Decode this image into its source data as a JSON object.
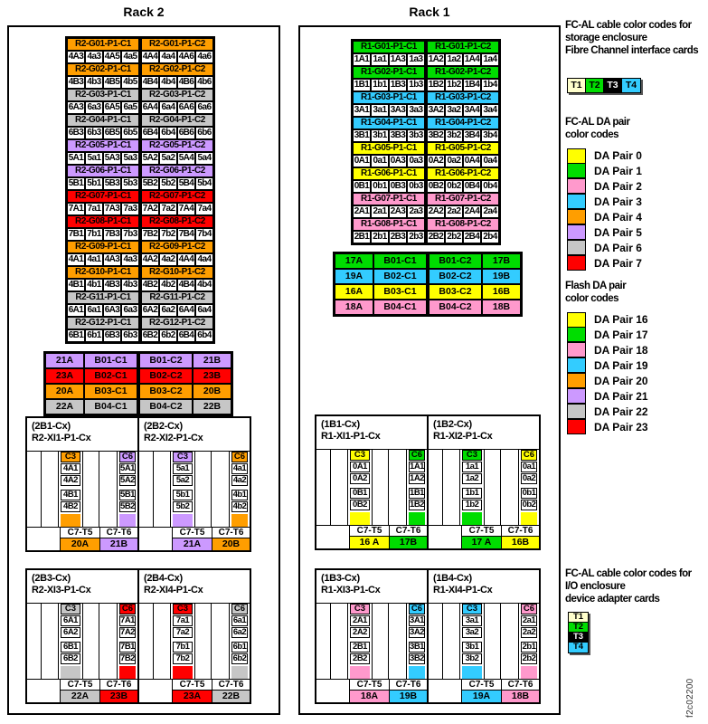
{
  "palette": {
    "orange": "#FF9E00",
    "purple": "#CC99FF",
    "red": "#FF0000",
    "gray": "#C6C6C6",
    "green": "#00DD00",
    "cyan": "#33CCFF",
    "yellow": "#FFFF00",
    "pink": "#FF99CC",
    "cream": "#FFFFCC",
    "black": "#000000"
  },
  "racks": [
    {
      "id": "rack2",
      "title": "Rack 2",
      "groups": [
        {
          "color": "orange",
          "c1": {
            "label": "R2-G01-P1-C1",
            "ports": [
              "4A3",
              "4a3",
              "4A5",
              "4a5"
            ]
          },
          "c2": {
            "label": "R2-G01-P1-C2",
            "ports": [
              "4A4",
              "4a4",
              "4A6",
              "4a6"
            ]
          }
        },
        {
          "color": "orange",
          "c1": {
            "label": "R2-G02-P1-C1",
            "ports": [
              "4B3",
              "4b3",
              "4B5",
              "4b5"
            ]
          },
          "c2": {
            "label": "R2-G02-P1-C2",
            "ports": [
              "4B4",
              "4b4",
              "4B6",
              "4b6"
            ]
          }
        },
        {
          "color": "gray",
          "c1": {
            "label": "R2-G03-P1-C1",
            "ports": [
              "6A3",
              "6a3",
              "6A5",
              "6a5"
            ]
          },
          "c2": {
            "label": "R2-G03-P1-C2",
            "ports": [
              "6A4",
              "6a4",
              "6A6",
              "6a6"
            ]
          }
        },
        {
          "color": "gray",
          "c1": {
            "label": "R2-G04-P1-C1",
            "ports": [
              "6B3",
              "6b3",
              "6B5",
              "6b5"
            ]
          },
          "c2": {
            "label": "R2-G04-P1-C2",
            "ports": [
              "6B4",
              "6b4",
              "6B6",
              "6b6"
            ]
          }
        },
        {
          "color": "purple",
          "c1": {
            "label": "R2-G05-P1-C1",
            "ports": [
              "5A1",
              "5a1",
              "5A3",
              "5a3"
            ]
          },
          "c2": {
            "label": "R2-G05-P1-C2",
            "ports": [
              "5A2",
              "5a2",
              "5A4",
              "5a4"
            ]
          }
        },
        {
          "color": "purple",
          "c1": {
            "label": "R2-G06-P1-C1",
            "ports": [
              "5B1",
              "5b1",
              "5B3",
              "5b3"
            ]
          },
          "c2": {
            "label": "R2-G06-P1-C2",
            "ports": [
              "5B2",
              "5b2",
              "5B4",
              "5b4"
            ]
          }
        },
        {
          "color": "red",
          "c1": {
            "label": "R2-G07-P1-C1",
            "ports": [
              "7A1",
              "7a1",
              "7A3",
              "7a3"
            ]
          },
          "c2": {
            "label": "R2-G07-P1-C2",
            "ports": [
              "7A2",
              "7a2",
              "7A4",
              "7a4"
            ]
          }
        },
        {
          "color": "red",
          "c1": {
            "label": "R2-G08-P1-C1",
            "ports": [
              "7B1",
              "7b1",
              "7B3",
              "7b3"
            ]
          },
          "c2": {
            "label": "R2-G08-P1-C2",
            "ports": [
              "7B2",
              "7b2",
              "7B4",
              "7b4"
            ]
          }
        },
        {
          "color": "orange",
          "c1": {
            "label": "R2-G09-P1-C1",
            "ports": [
              "4A1",
              "4a1",
              "4A3",
              "4a3"
            ]
          },
          "c2": {
            "label": "R2-G09-P1-C2",
            "ports": [
              "4A2",
              "4a2",
              "4A4",
              "4a4"
            ]
          }
        },
        {
          "color": "orange",
          "c1": {
            "label": "R2-G10-P1-C1",
            "ports": [
              "4B1",
              "4b1",
              "4B3",
              "4b3"
            ]
          },
          "c2": {
            "label": "R2-G10-P1-C2",
            "ports": [
              "4B2",
              "4b2",
              "4B4",
              "4b4"
            ]
          }
        },
        {
          "color": "gray",
          "c1": {
            "label": "R2-G11-P1-C1",
            "ports": [
              "6A1",
              "6a1",
              "6A3",
              "6a3"
            ]
          },
          "c2": {
            "label": "R2-G11-P1-C2",
            "ports": [
              "6A2",
              "6a2",
              "6A4",
              "6a4"
            ]
          }
        },
        {
          "color": "gray",
          "c1": {
            "label": "R2-G12-P1-C1",
            "ports": [
              "6B1",
              "6b1",
              "6B3",
              "6b3"
            ]
          },
          "c2": {
            "label": "R2-G12-P1-C2",
            "ports": [
              "6B2",
              "6b2",
              "6B4",
              "6b4"
            ]
          }
        }
      ],
      "bays": [
        {
          "color": "purple",
          "cells": [
            "21A",
            "B01-C1",
            "B01-C2",
            "21B"
          ]
        },
        {
          "color": "red",
          "cells": [
            "23A",
            "B02-C1",
            "B02-C2",
            "23B"
          ]
        },
        {
          "color": "orange",
          "cells": [
            "20A",
            "B03-C1",
            "B03-C2",
            "20B"
          ]
        },
        {
          "color": "gray",
          "cells": [
            "22A",
            "B04-C1",
            "B04-C2",
            "22B"
          ]
        }
      ],
      "enclosures": [
        {
          "id": "(2B1-Cx)",
          "loc": "R2-XI1-P1-Cx",
          "c3": {
            "label": "C3",
            "color": "orange",
            "ports": [
              "4A1",
              "4A2",
              "4B1",
              "4B2"
            ]
          },
          "c6": {
            "label": "C6",
            "color": "purple",
            "ports": [
              "5A1",
              "5A2",
              "5B1",
              "5B2"
            ]
          },
          "t5": {
            "label": "C7-T5",
            "value": "20A",
            "color": "orange"
          },
          "t6": {
            "label": "C7-T6",
            "value": "21B",
            "color": "purple"
          }
        },
        {
          "id": "(2B2-Cx)",
          "loc": "R2-XI2-P1-Cx",
          "c3": {
            "label": "C3",
            "color": "purple",
            "ports": [
              "5a1",
              "5a2",
              "5b1",
              "5b2"
            ]
          },
          "c6": {
            "label": "C6",
            "color": "orange",
            "ports": [
              "4a1",
              "4a2",
              "4b1",
              "4b2"
            ]
          },
          "t5": {
            "label": "C7-T5",
            "value": "21A",
            "color": "purple"
          },
          "t6": {
            "label": "C7-T6",
            "value": "20B",
            "color": "orange"
          }
        },
        {
          "id": "(2B3-Cx)",
          "loc": "R2-XI3-P1-Cx",
          "c3": {
            "label": "C3",
            "color": "gray",
            "ports": [
              "6A1",
              "6A2",
              "6B1",
              "6B2"
            ]
          },
          "c6": {
            "label": "C6",
            "color": "red",
            "ports": [
              "7A1",
              "7A2",
              "7B1",
              "7B2"
            ]
          },
          "t5": {
            "label": "C7-T5",
            "value": "22A",
            "color": "gray"
          },
          "t6": {
            "label": "C7-T6",
            "value": "23B",
            "color": "red"
          }
        },
        {
          "id": "(2B4-Cx)",
          "loc": "R2-XI4-P1-Cx",
          "c3": {
            "label": "C3",
            "color": "red",
            "ports": [
              "7a1",
              "7a2",
              "7b1",
              "7b2"
            ]
          },
          "c6": {
            "label": "C6",
            "color": "gray",
            "ports": [
              "6a1",
              "6a2",
              "6b1",
              "6b2"
            ]
          },
          "t5": {
            "label": "C7-T5",
            "value": "23A",
            "color": "red"
          },
          "t6": {
            "label": "C7-T6",
            "value": "22B",
            "color": "gray"
          }
        }
      ]
    },
    {
      "id": "rack1",
      "title": "Rack 1",
      "groups": [
        {
          "color": "green",
          "c1": {
            "label": "R1-G01-P1-C1",
            "ports": [
              "1A1",
              "1a1",
              "1A3",
              "1a3"
            ]
          },
          "c2": {
            "label": "R1-G01-P1-C2",
            "ports": [
              "1A2",
              "1a2",
              "1A4",
              "1a4"
            ]
          }
        },
        {
          "color": "green",
          "c1": {
            "label": "R1-G02-P1-C1",
            "ports": [
              "1B1",
              "1b1",
              "1B3",
              "1b3"
            ]
          },
          "c2": {
            "label": "R1-G02-P1-C2",
            "ports": [
              "1B2",
              "1b2",
              "1B4",
              "1b4"
            ]
          }
        },
        {
          "color": "cyan",
          "c1": {
            "label": "R1-G03-P1-C1",
            "ports": [
              "3A1",
              "3a1",
              "3A3",
              "3a3"
            ]
          },
          "c2": {
            "label": "R1-G03-P1-C2",
            "ports": [
              "3A2",
              "3a2",
              "3A4",
              "3a4"
            ]
          }
        },
        {
          "color": "cyan",
          "c1": {
            "label": "R1-G04-P1-C1",
            "ports": [
              "3B1",
              "3b1",
              "3B3",
              "3b3"
            ]
          },
          "c2": {
            "label": "R1-G04-P1-C2",
            "ports": [
              "3B2",
              "3b2",
              "3B4",
              "3b4"
            ]
          }
        },
        {
          "color": "yellow",
          "c1": {
            "label": "R1-G05-P1-C1",
            "ports": [
              "0A1",
              "0a1",
              "0A3",
              "0a3"
            ]
          },
          "c2": {
            "label": "R1-G05-P1-C2",
            "ports": [
              "0A2",
              "0a2",
              "0A4",
              "0a4"
            ]
          }
        },
        {
          "color": "yellow",
          "c1": {
            "label": "R1-G06-P1-C1",
            "ports": [
              "0B1",
              "0b1",
              "0B3",
              "0b3"
            ]
          },
          "c2": {
            "label": "R1-G06-P1-C2",
            "ports": [
              "0B2",
              "0b2",
              "0B4",
              "0b4"
            ]
          }
        },
        {
          "color": "pink",
          "c1": {
            "label": "R1-G07-P1-C1",
            "ports": [
              "2A1",
              "2a1",
              "2A3",
              "2a3"
            ]
          },
          "c2": {
            "label": "R1-G07-P1-C2",
            "ports": [
              "2A2",
              "2a2",
              "2A4",
              "2a4"
            ]
          }
        },
        {
          "color": "pink",
          "c1": {
            "label": "R1-G08-P1-C1",
            "ports": [
              "2B1",
              "2b1",
              "2B3",
              "2b3"
            ]
          },
          "c2": {
            "label": "R1-G08-P1-C2",
            "ports": [
              "2B2",
              "2b2",
              "2B4",
              "2b4"
            ]
          }
        }
      ],
      "bays": [
        {
          "color": "green",
          "cells": [
            "17A",
            "B01-C1",
            "B01-C2",
            "17B"
          ]
        },
        {
          "color": "cyan",
          "cells": [
            "19A",
            "B02-C1",
            "B02-C2",
            "19B"
          ]
        },
        {
          "color": "yellow",
          "cells": [
            "16A",
            "B03-C1",
            "B03-C2",
            "16B"
          ]
        },
        {
          "color": "pink",
          "cells": [
            "18A",
            "B04-C1",
            "B04-C2",
            "18B"
          ]
        }
      ],
      "enclosures": [
        {
          "id": "(1B1-Cx)",
          "loc": "R1-XI1-P1-Cx",
          "c3": {
            "label": "C3",
            "color": "yellow",
            "ports": [
              "0A1",
              "0A2",
              "0B1",
              "0B2"
            ]
          },
          "c6": {
            "label": "C6",
            "color": "green",
            "ports": [
              "1A1",
              "1A2",
              "1B1",
              "1B2"
            ]
          },
          "t5": {
            "label": "C7-T5",
            "value": "16 A",
            "color": "yellow"
          },
          "t6": {
            "label": "C7-T6",
            "value": "17B",
            "color": "green"
          }
        },
        {
          "id": "(1B2-Cx)",
          "loc": "R1-XI2-P1-Cx",
          "c3": {
            "label": "C3",
            "color": "green",
            "ports": [
              "1a1",
              "1a2",
              "1b1",
              "1b2"
            ]
          },
          "c6": {
            "label": "C6",
            "color": "yellow",
            "ports": [
              "0a1",
              "0a2",
              "0b1",
              "0b2"
            ]
          },
          "t5": {
            "label": "C7-T5",
            "value": "17 A",
            "color": "green"
          },
          "t6": {
            "label": "C7-T6",
            "value": "16B",
            "color": "yellow"
          }
        },
        {
          "id": "(1B3-Cx)",
          "loc": "R1-XI3-P1-Cx",
          "c3": {
            "label": "C3",
            "color": "pink",
            "ports": [
              "2A1",
              "2A2",
              "2B1",
              "2B2"
            ]
          },
          "c6": {
            "label": "C6",
            "color": "cyan",
            "ports": [
              "3A1",
              "3A2",
              "3B1",
              "3B2"
            ]
          },
          "t5": {
            "label": "C7-T5",
            "value": "18A",
            "color": "pink"
          },
          "t6": {
            "label": "C7-T6",
            "value": "19B",
            "color": "cyan"
          }
        },
        {
          "id": "(1B4-Cx)",
          "loc": "R1-XI4-P1-Cx",
          "c3": {
            "label": "C3",
            "color": "cyan",
            "ports": [
              "3a1",
              "3a2",
              "3b1",
              "3b2"
            ]
          },
          "c6": {
            "label": "C6",
            "color": "pink",
            "ports": [
              "2a1",
              "2a2",
              "2b1",
              "2b2"
            ]
          },
          "t5": {
            "label": "C7-T5",
            "value": "19A",
            "color": "cyan"
          },
          "t6": {
            "label": "C7-T6",
            "value": "18B",
            "color": "pink"
          }
        }
      ]
    }
  ],
  "legend": {
    "storage_title": [
      "FC-AL cable color codes for",
      "storage enclosure",
      "Fibre Channel interface cards"
    ],
    "da_title": [
      "FC-AL DA pair",
      "color codes"
    ],
    "flash_title": [
      "Flash DA pair",
      "color codes"
    ],
    "io_title": [
      "FC-AL cable color codes for",
      "I/O enclosure",
      "device adapter cards"
    ],
    "t_cards": [
      {
        "label": "T1",
        "bg": "cream",
        "fg": "#000000"
      },
      {
        "label": "T2",
        "bg": "green",
        "fg": "#000000"
      },
      {
        "label": "T3",
        "bg": "black",
        "fg": "#FFFFFF"
      },
      {
        "label": "T4",
        "bg": "cyan",
        "fg": "#000000"
      }
    ],
    "da_pairs": [
      {
        "label": "DA Pair 0",
        "color": "yellow"
      },
      {
        "label": "DA Pair 1",
        "color": "green"
      },
      {
        "label": "DA Pair 2",
        "color": "pink"
      },
      {
        "label": "DA Pair 3",
        "color": "cyan"
      },
      {
        "label": "DA Pair 4",
        "color": "orange"
      },
      {
        "label": "DA Pair 5",
        "color": "purple"
      },
      {
        "label": "DA Pair 6",
        "color": "gray"
      },
      {
        "label": "DA Pair 7",
        "color": "red"
      }
    ],
    "flash_pairs": [
      {
        "label": "DA Pair 16",
        "color": "yellow"
      },
      {
        "label": "DA Pair 17",
        "color": "green"
      },
      {
        "label": "DA Pair 18",
        "color": "pink"
      },
      {
        "label": "DA Pair 19",
        "color": "cyan"
      },
      {
        "label": "DA Pair 20",
        "color": "orange"
      },
      {
        "label": "DA Pair 21",
        "color": "purple"
      },
      {
        "label": "DA Pair 22",
        "color": "gray"
      },
      {
        "label": "DA Pair 23",
        "color": "red"
      }
    ],
    "figure_id": "f2c02200"
  }
}
